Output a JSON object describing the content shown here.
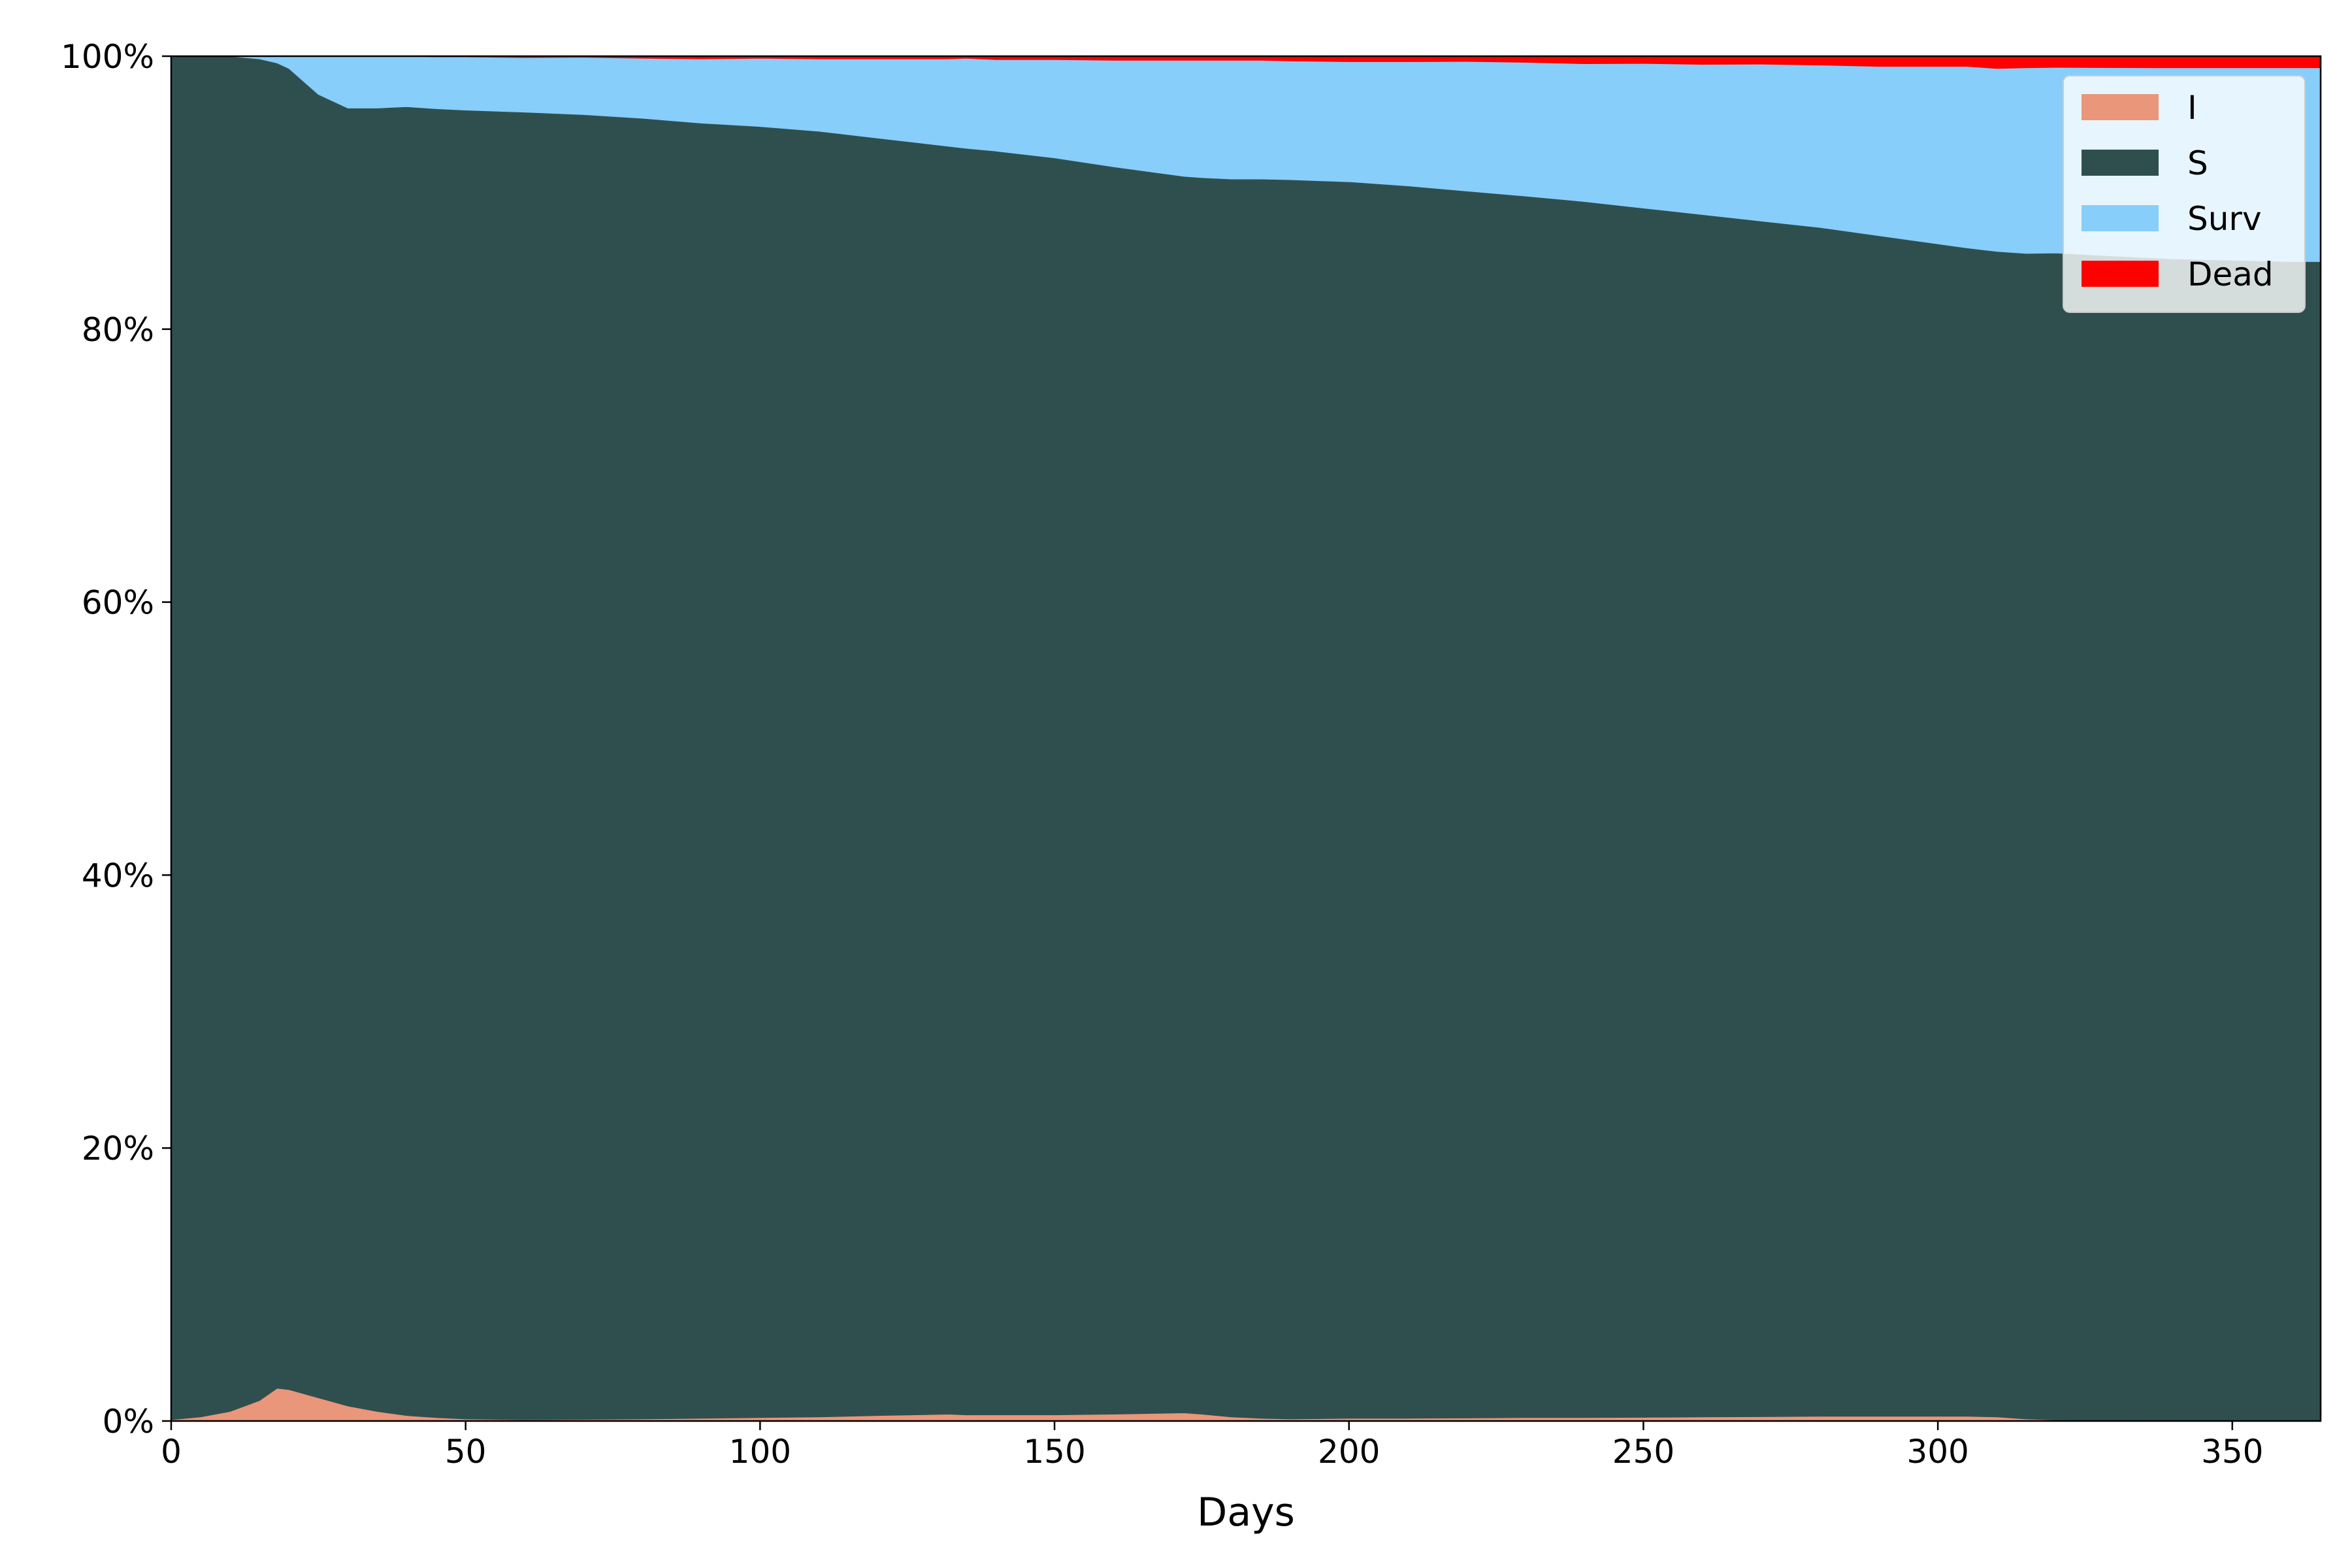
{
  "chart_data": {
    "type": "area",
    "stacked": true,
    "normalized": true,
    "xlabel": "Days",
    "ylabel": "",
    "xlim": [
      0,
      365
    ],
    "ylim": [
      0,
      100
    ],
    "x_ticks": [
      0,
      50,
      100,
      150,
      200,
      250,
      300,
      350
    ],
    "y_ticks": [
      0,
      20,
      40,
      60,
      80,
      100
    ],
    "y_tick_labels": [
      "0%",
      "20%",
      "40%",
      "60%",
      "80%",
      "100%"
    ],
    "legend_position": "top-right",
    "x": [
      0,
      5,
      10,
      15,
      18,
      20,
      25,
      30,
      35,
      40,
      45,
      50,
      60,
      70,
      80,
      90,
      100,
      110,
      120,
      132,
      135,
      140,
      150,
      160,
      172,
      175,
      180,
      185,
      190,
      200,
      210,
      220,
      230,
      240,
      250,
      260,
      270,
      280,
      290,
      300,
      305,
      310,
      315,
      320,
      330,
      340,
      350,
      360,
      365
    ],
    "series": [
      {
        "name": "I",
        "color": "#e9967a",
        "values": [
          0.1,
          0.3,
          0.7,
          1.5,
          2.4,
          2.3,
          1.7,
          1.1,
          0.7,
          0.4,
          0.25,
          0.15,
          0.1,
          0.12,
          0.15,
          0.2,
          0.25,
          0.3,
          0.4,
          0.5,
          0.45,
          0.45,
          0.45,
          0.5,
          0.6,
          0.5,
          0.3,
          0.2,
          0.15,
          0.2,
          0.2,
          0.22,
          0.25,
          0.25,
          0.27,
          0.3,
          0.32,
          0.35,
          0.35,
          0.35,
          0.35,
          0.3,
          0.15,
          0.08,
          0.06,
          0.05,
          0.05,
          0.05,
          0.05
        ]
      },
      {
        "name": "S",
        "color": "#2f4f4f",
        "values": [
          99.9,
          99.7,
          99.3,
          98.3,
          97.1,
          96.8,
          95.5,
          95.1,
          95.5,
          95.9,
          95.9,
          95.9,
          95.8,
          95.6,
          95.3,
          94.9,
          94.6,
          94.2,
          93.6,
          92.9,
          92.8,
          92.6,
          92.1,
          91.4,
          90.6,
          90.6,
          90.7,
          90.8,
          90.8,
          90.6,
          90.3,
          89.9,
          89.5,
          89.1,
          88.6,
          88.1,
          87.6,
          87.1,
          86.5,
          85.9,
          85.6,
          85.4,
          85.4,
          85.5,
          85.3,
          85.1,
          85.0,
          84.9,
          84.9
        ]
      },
      {
        "name": "Surv",
        "color": "#87cefa",
        "values": [
          0,
          0,
          0,
          0.2,
          0.5,
          0.9,
          2.8,
          3.8,
          3.8,
          3.7,
          3.8,
          3.9,
          4.0,
          4.2,
          4.4,
          4.7,
          5.0,
          5.3,
          5.8,
          6.4,
          6.6,
          6.7,
          7.2,
          7.8,
          8.5,
          8.6,
          8.7,
          8.7,
          8.7,
          8.8,
          9.1,
          9.5,
          9.8,
          10.1,
          10.6,
          11.0,
          11.5,
          11.9,
          12.4,
          13.0,
          13.3,
          13.4,
          13.6,
          13.6,
          13.8,
          14.0,
          14.1,
          14.2,
          14.2
        ]
      },
      {
        "name": "Dead",
        "color": "#ff0000",
        "values": [
          0,
          0,
          0,
          0,
          0,
          0,
          0,
          0,
          0,
          0,
          0.05,
          0.05,
          0.1,
          0.08,
          0.15,
          0.2,
          0.15,
          0.2,
          0.2,
          0.2,
          0.15,
          0.25,
          0.25,
          0.3,
          0.3,
          0.3,
          0.3,
          0.3,
          0.35,
          0.4,
          0.4,
          0.38,
          0.45,
          0.55,
          0.53,
          0.6,
          0.58,
          0.65,
          0.75,
          0.75,
          0.75,
          0.9,
          0.85,
          0.82,
          0.84,
          0.85,
          0.85,
          0.85,
          0.85
        ]
      }
    ]
  }
}
